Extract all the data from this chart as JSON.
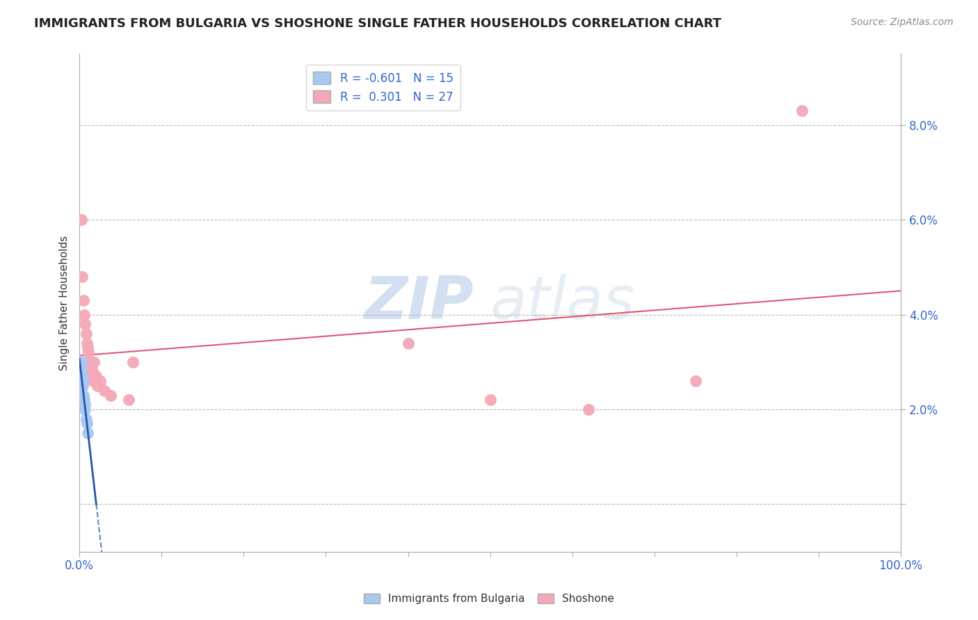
{
  "title": "IMMIGRANTS FROM BULGARIA VS SHOSHONE SINGLE FATHER HOUSEHOLDS CORRELATION CHART",
  "source": "Source: ZipAtlas.com",
  "xlabel": "",
  "ylabel": "Single Father Households",
  "xlim": [
    0.0,
    1.0
  ],
  "ylim": [
    -0.01,
    0.095
  ],
  "xticks": [
    0.0,
    0.1,
    0.2,
    0.3,
    0.4,
    0.5,
    0.6,
    0.7,
    0.8,
    0.9,
    1.0
  ],
  "xticklabels": [
    "0.0%",
    "",
    "",
    "",
    "",
    "",
    "",
    "",
    "",
    "",
    "100.0%"
  ],
  "yticks": [
    0.0,
    0.02,
    0.04,
    0.06,
    0.08
  ],
  "yticklabels_right": [
    "",
    "2.0%",
    "4.0%",
    "6.0%",
    "8.0%"
  ],
  "legend_r1": "R = -0.601",
  "legend_n1": "N = 15",
  "legend_r2": "R =  0.301",
  "legend_n2": "N = 27",
  "blue_color": "#a8c8f0",
  "pink_color": "#f4a8b8",
  "blue_line_color": "#2255aa",
  "pink_line_color": "#e05575",
  "watermark_zip": "ZIP",
  "watermark_atlas": "atlas",
  "blue_scatter_x": [
    0.001,
    0.002,
    0.002,
    0.003,
    0.003,
    0.004,
    0.004,
    0.005,
    0.005,
    0.006,
    0.007,
    0.007,
    0.008,
    0.009,
    0.01
  ],
  "blue_scatter_y": [
    0.027,
    0.028,
    0.025,
    0.03,
    0.027,
    0.026,
    0.025,
    0.023,
    0.022,
    0.022,
    0.021,
    0.02,
    0.018,
    0.017,
    0.015
  ],
  "pink_scatter_x": [
    0.002,
    0.003,
    0.005,
    0.006,
    0.007,
    0.008,
    0.009,
    0.01,
    0.011,
    0.012,
    0.013,
    0.014,
    0.016,
    0.017,
    0.018,
    0.02,
    0.022,
    0.025,
    0.03,
    0.038,
    0.06,
    0.065,
    0.4,
    0.5,
    0.62,
    0.75,
    0.88
  ],
  "pink_scatter_y": [
    0.06,
    0.048,
    0.043,
    0.04,
    0.038,
    0.036,
    0.034,
    0.033,
    0.032,
    0.03,
    0.028,
    0.027,
    0.028,
    0.026,
    0.03,
    0.027,
    0.025,
    0.026,
    0.024,
    0.023,
    0.022,
    0.03,
    0.034,
    0.022,
    0.02,
    0.026,
    0.083
  ],
  "blue_line_x_start": 0.0,
  "blue_line_x_end": 0.4,
  "pink_line_x_start": 0.0,
  "pink_line_x_end": 1.0,
  "title_fontsize": 13,
  "source_fontsize": 10,
  "tick_fontsize": 12,
  "ylabel_fontsize": 11,
  "legend_fontsize": 12
}
